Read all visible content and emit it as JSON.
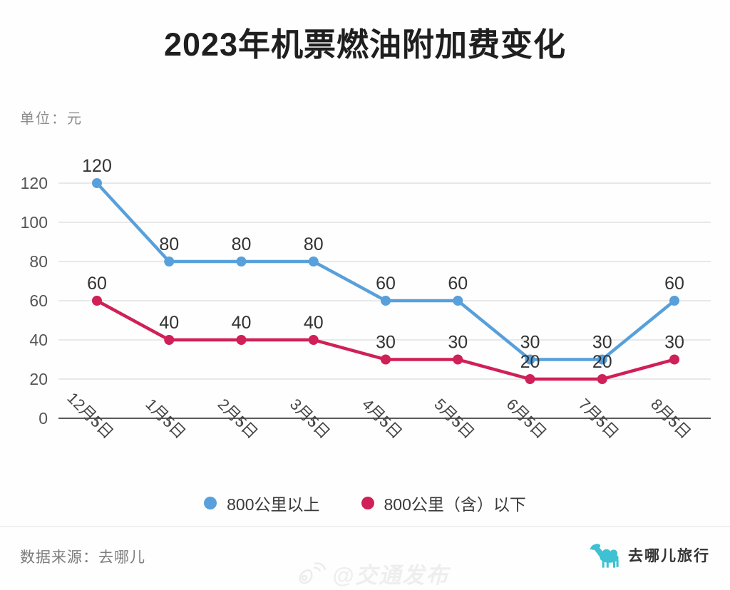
{
  "title": "2023年机票燃油附加费变化",
  "unit_label": "单位：元",
  "chart_data": {
    "type": "line",
    "title": "2023年机票燃油附加费变化",
    "ylabel": "单位：元",
    "xlabel": "",
    "categories": [
      "12月5日",
      "1月5日",
      "2月5日",
      "3月5日",
      "4月5日",
      "5月5日",
      "6月5日",
      "7月5日",
      "8月5日"
    ],
    "series": [
      {
        "name": "800公里以上",
        "color": "#58A0DB",
        "values": [
          120,
          80,
          80,
          80,
          60,
          60,
          30,
          30,
          60
        ]
      },
      {
        "name": "800公里（含）以下",
        "color": "#D02058",
        "values": [
          60,
          40,
          40,
          40,
          30,
          30,
          20,
          20,
          30
        ]
      }
    ],
    "yticks": [
      0,
      20,
      40,
      60,
      80,
      100,
      120
    ],
    "ylim": [
      0,
      130
    ],
    "grid": true,
    "data_labels": true,
    "legend_position": "bottom"
  },
  "colors": {
    "series_above_800km": "#58A0DB",
    "series_below_800km": "#D02058",
    "grid_line": "#dcdcdc",
    "axis_line": "#5a5a5a",
    "brand_teal": "#3EC1D3"
  },
  "footer": {
    "source": "数据来源：去哪儿",
    "brand_name": "去哪儿旅行",
    "watermark": "@交通发布"
  }
}
